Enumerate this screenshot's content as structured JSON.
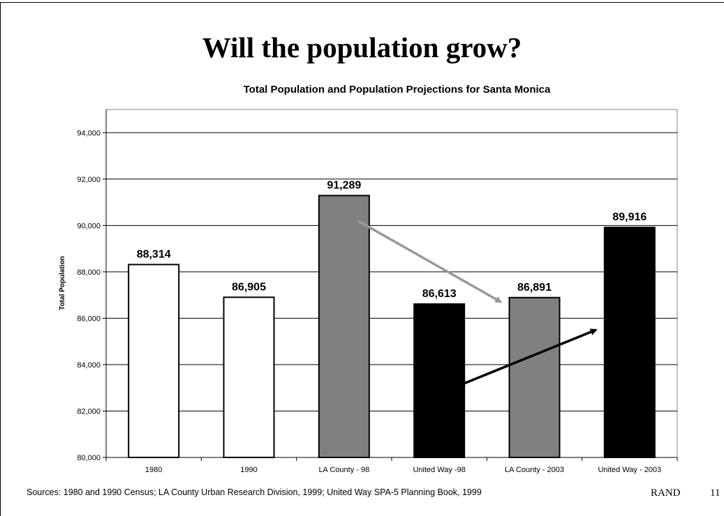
{
  "slide": {
    "title": "Will the population grow?",
    "sources": "Sources:  1980 and 1990 Census; LA County Urban Research Division, 1999; United Way SPA-5 Planning Book, 1999",
    "org": "RAND",
    "page": "11"
  },
  "chart_data": {
    "type": "bar",
    "title": "Total Population and Population Projections for Santa Monica",
    "xlabel": "",
    "ylabel": "Total Population",
    "categories": [
      "1980",
      "1990",
      "LA County - 98",
      "United Way -98",
      "LA County - 2003",
      "United Way - 2003"
    ],
    "values": [
      88314,
      86905,
      91289,
      86613,
      86891,
      89916
    ],
    "value_labels": [
      "88,314",
      "86,905",
      "91,289",
      "86,613",
      "86,891",
      "89,916"
    ],
    "bar_colors": [
      "#ffffff",
      "#ffffff",
      "#808080",
      "#000000",
      "#808080",
      "#000000"
    ],
    "ylim": [
      80000,
      95000
    ],
    "yticks": [
      80000,
      82000,
      84000,
      86000,
      88000,
      90000,
      92000,
      94000
    ],
    "ytick_labels": [
      "80,000",
      "82,000",
      "84,000",
      "86,000",
      "88,000",
      "90,000",
      "92,000",
      "94,000"
    ],
    "grid": true,
    "annotations": [
      {
        "type": "arrow",
        "color": "#999999",
        "from": {
          "category": "LA County - 98",
          "value": 90200
        },
        "to": {
          "category": "LA County - 2003",
          "value": 86700
        }
      },
      {
        "type": "arrow",
        "color": "#000000",
        "from": {
          "category": "United Way -98",
          "value": 83000
        },
        "to": {
          "category": "United Way - 2003",
          "value": 85500
        }
      }
    ]
  }
}
